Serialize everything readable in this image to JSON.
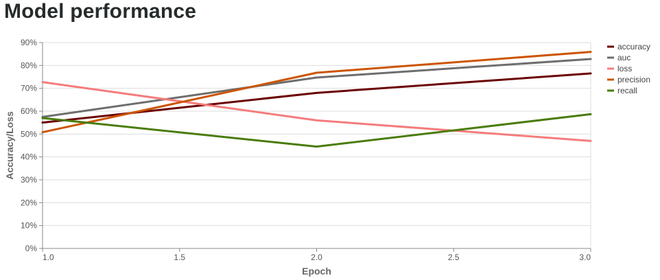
{
  "title": "Model performance",
  "chart_data": {
    "type": "line",
    "title": "Model performance",
    "xlabel": "Epoch",
    "ylabel": "Accuracy/Loss",
    "xlim": [
      1.0,
      3.0
    ],
    "ylim": [
      0,
      0.9
    ],
    "x_ticks": [
      "1.0",
      "1.5",
      "2.0",
      "2.5",
      "3.0"
    ],
    "x_tick_values": [
      1.0,
      1.5,
      2.0,
      2.5,
      3.0
    ],
    "y_ticks": [
      "0%",
      "10%",
      "20%",
      "30%",
      "40%",
      "50%",
      "60%",
      "70%",
      "80%",
      "90%"
    ],
    "y_tick_values": [
      0,
      0.1,
      0.2,
      0.3,
      0.4,
      0.5,
      0.6,
      0.7,
      0.8,
      0.9
    ],
    "grid": "horizontal",
    "legend_position": "top-right",
    "x": [
      1,
      2,
      3
    ],
    "series": [
      {
        "name": "accuracy",
        "color": "#6b0000",
        "values": [
          0.55,
          0.68,
          0.765
        ]
      },
      {
        "name": "auc",
        "color": "#6e6e6e",
        "values": [
          0.575,
          0.747,
          0.828
        ]
      },
      {
        "name": "loss",
        "color": "#f57c7c",
        "values": [
          0.727,
          0.56,
          0.47
        ]
      },
      {
        "name": "precision",
        "color": "#cc5500",
        "values": [
          0.508,
          0.768,
          0.859
        ]
      },
      {
        "name": "recall",
        "color": "#4a7c0a",
        "values": [
          0.57,
          0.445,
          0.587
        ]
      }
    ]
  }
}
